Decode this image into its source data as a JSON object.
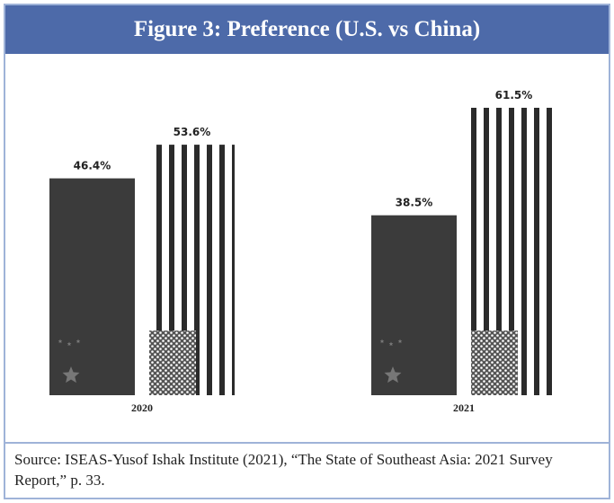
{
  "title": "Figure 3: Preference (U.S. vs China)",
  "chart_data": {
    "type": "bar",
    "categories": [
      "2020",
      "2021"
    ],
    "series": [
      {
        "color": "#3b3b3b",
        "values": [
          46.4,
          38.5
        ],
        "value_labels": [
          "46.4%",
          "38.5%"
        ]
      },
      {
        "color": "#2b2b2b",
        "values": [
          53.6,
          61.5
        ],
        "value_labels": [
          "53.6%",
          "61.5%"
        ]
      }
    ]
  },
  "source": "Source: ISEAS-Yusof Ishak Institute (2021), “The State of Southeast Asia: 2021 Survey Report,” p. 33."
}
